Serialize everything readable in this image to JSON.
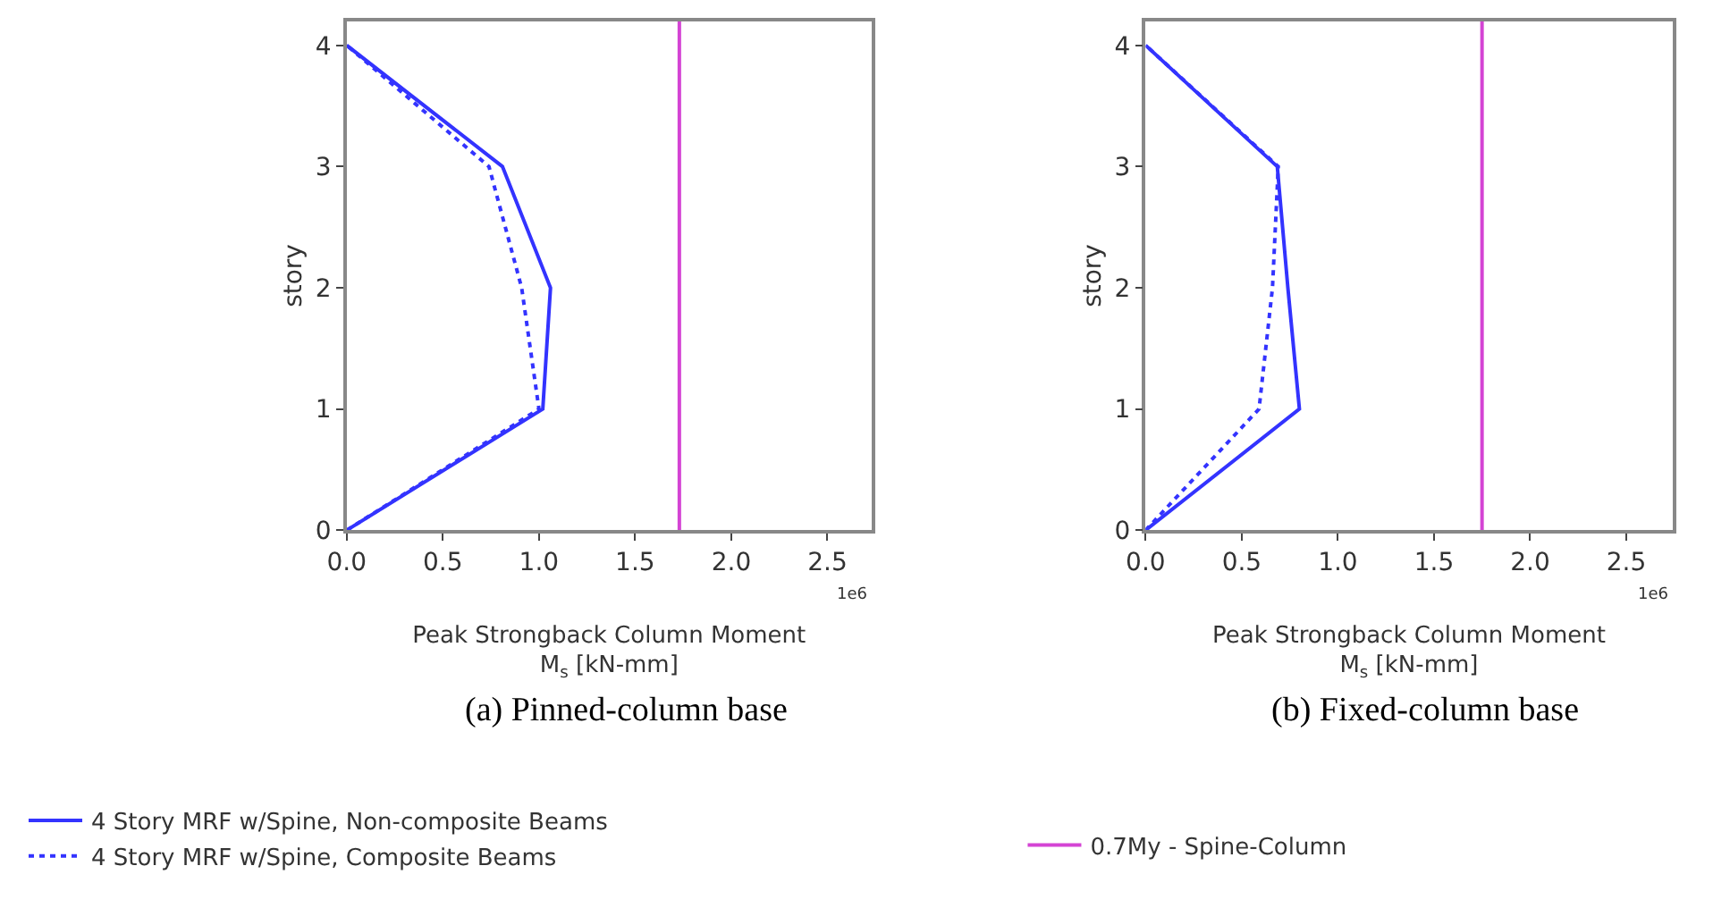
{
  "chart_data": [
    {
      "type": "line",
      "title": "(a) Pinned-column base",
      "xlabel": "Peak Strongback Column Moment\nM$_{s}$ [kN-mm]",
      "ylabel": "story",
      "series": [
        {
          "name": "4 Story MRF w/Spine, Non-composite Beams",
          "color": "#3333ff",
          "line_style": "solid",
          "x": [
            0,
            1.02,
            1.06,
            0.81,
            0
          ],
          "values": [
            0,
            1,
            2,
            3,
            4
          ]
        },
        {
          "name": "4 Story MRF w/Spine, Composite Beams",
          "color": "#3333ff",
          "line_style": "dotted",
          "x": [
            0,
            1.0,
            0.91,
            0.74,
            0
          ],
          "values": [
            0,
            1,
            2,
            3,
            4
          ]
        }
      ],
      "ref_lines": [
        {
          "axis": "x",
          "value": 1.73,
          "color": "#d444d4"
        }
      ],
      "xlim": [
        0,
        2.73
      ],
      "ylim": [
        0,
        4.2
      ],
      "xticks": [
        {
          "value": 0,
          "label": "0.0"
        },
        0.5,
        {
          "value": 1,
          "label": "1.0"
        },
        1.5,
        {
          "value": 2,
          "label": "2.0"
        },
        2.5
      ],
      "yticks": [
        0,
        1,
        2,
        3,
        4
      ],
      "annotations": [
        "1e6"
      ],
      "legend": "bottom"
    },
    {
      "type": "line",
      "title": "(b) Fixed-column base",
      "xlabel": "Peak Strongback Column Moment\nM$_{s}$ [kN-mm]",
      "ylabel": "story",
      "series": [
        {
          "color": "#3333ff",
          "line_style": "solid",
          "x": [
            0,
            0.8,
            0.74,
            0.685,
            0
          ],
          "values": [
            0,
            1,
            2,
            3,
            4
          ]
        },
        {
          "color": "#3333ff",
          "line_style": "dotted",
          "x": [
            0,
            0.59,
            0.66,
            0.69,
            0
          ],
          "values": [
            0,
            1,
            2,
            3,
            4
          ]
        }
      ],
      "ref_lines": [
        {
          "axis": "x",
          "value": 1.75,
          "label": "0.7My - Spine-Column",
          "color": "#d444d4"
        }
      ],
      "xlim": [
        0,
        2.74
      ],
      "ylim": [
        0,
        4.2
      ],
      "xticks": [
        {
          "value": 0,
          "label": "0.0"
        },
        0.5,
        {
          "value": 1,
          "label": "1.0"
        },
        1.5,
        {
          "value": 2,
          "label": "2.0"
        },
        2.5
      ],
      "yticks": [
        0,
        1,
        2,
        3,
        4
      ],
      "annotations": [
        "1e6"
      ],
      "legend": "bottom"
    }
  ]
}
